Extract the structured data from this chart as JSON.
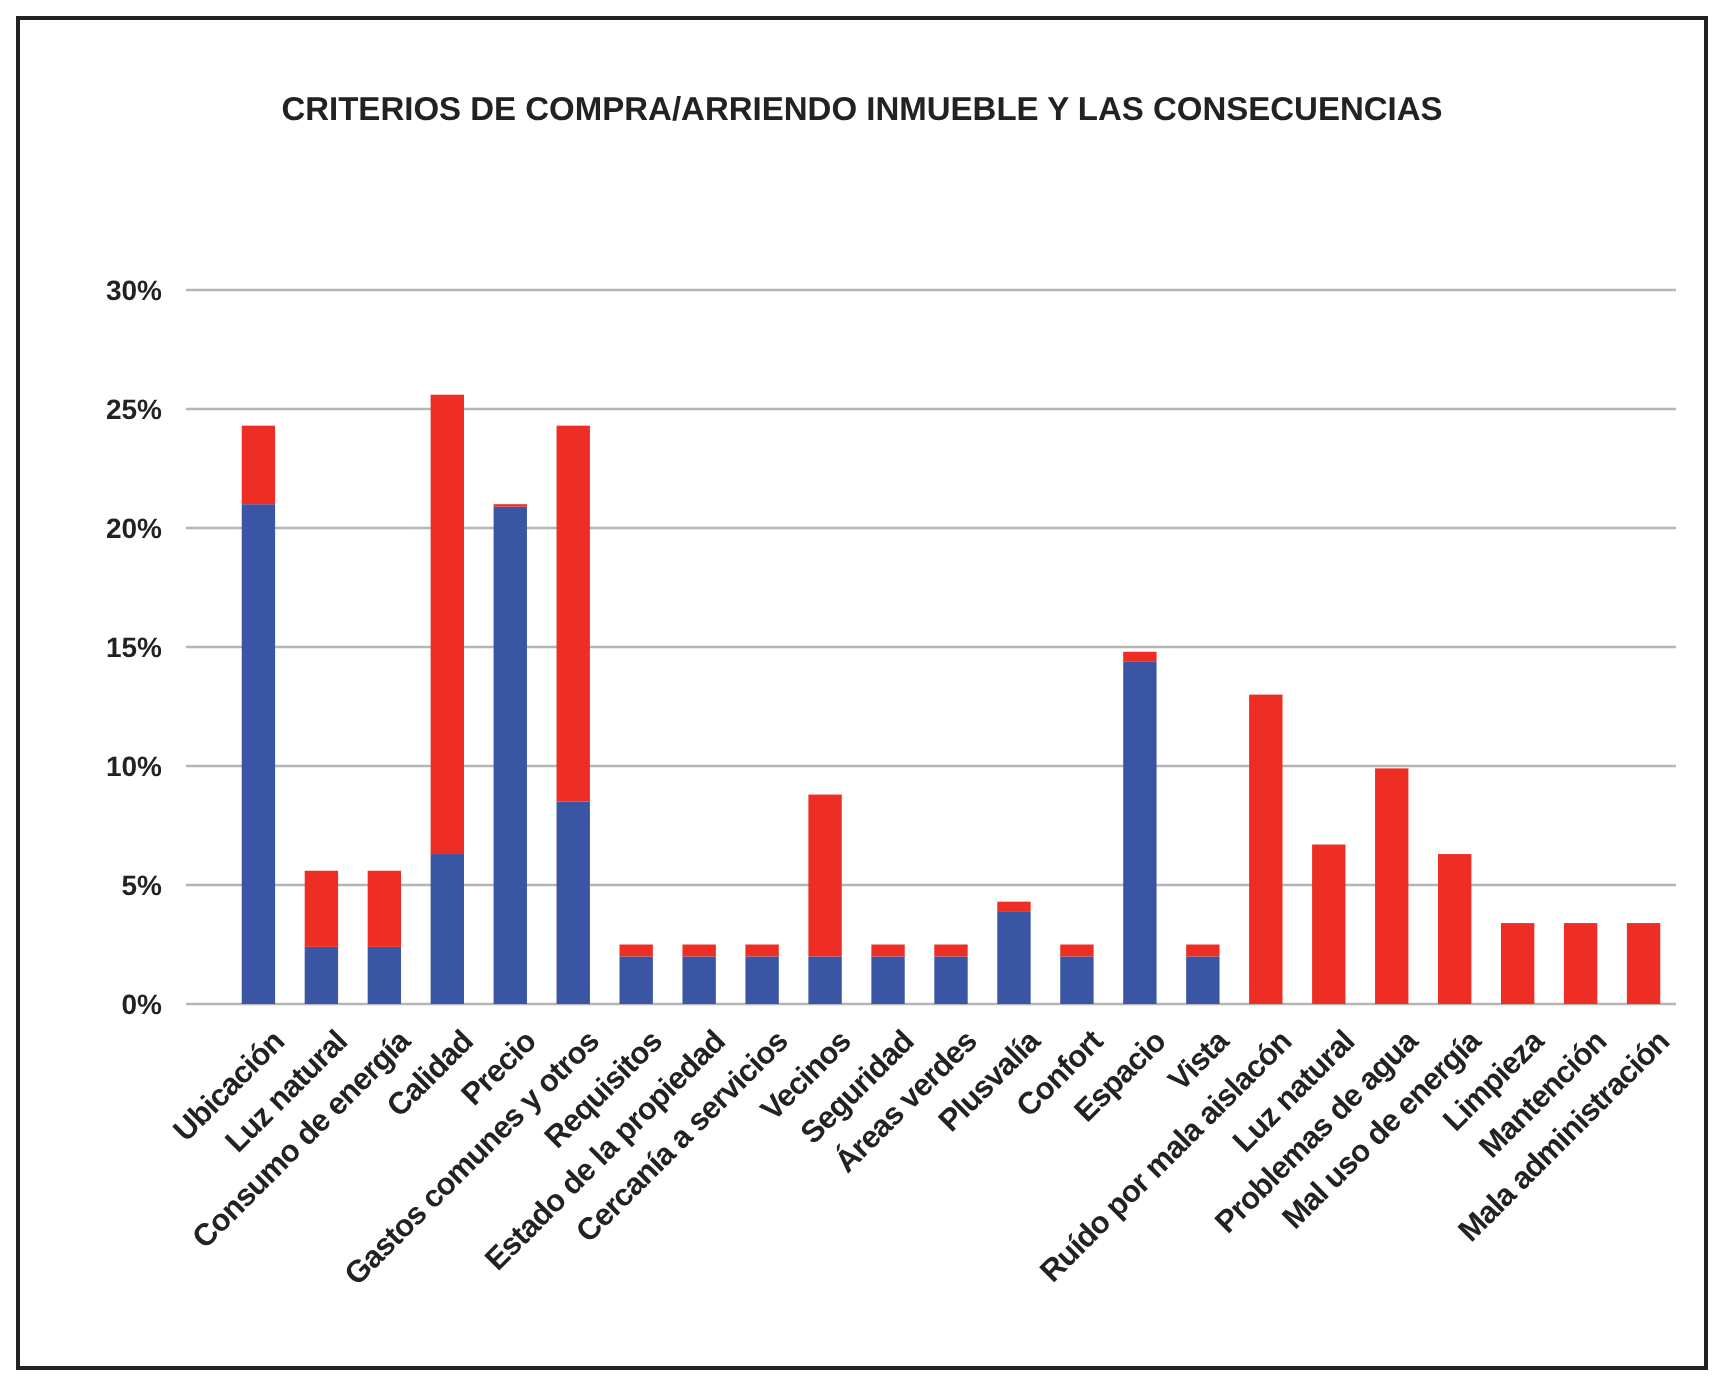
{
  "chart_data": {
    "type": "bar",
    "title": "CRITERIOS DE COMPRA/ARRIENDO INMUEBLE Y LAS CONSECUENCIAS",
    "stacked": true,
    "grid": "y",
    "categories": [
      "Ubicación",
      "Luz natural",
      "Consumo de energía",
      "Calidad",
      "Precio",
      "Gastos comunes y otros",
      "Requisitos",
      "Estado de la propiedad",
      "Cercanía a servicios",
      "Vecinos",
      "Seguridad",
      "Áreas verdes",
      "Plusvalía",
      "Confort",
      "Espacio",
      "Vista",
      "Ruído por mala aislacón",
      "Luz natural",
      "Problemas de agua",
      "Mal uso de energía",
      "Limpieza",
      "Mantención",
      "Mala administración"
    ],
    "series": [
      {
        "color": "#3a55a4",
        "values": [
          21.0,
          2.4,
          2.4,
          6.3,
          20.9,
          8.5,
          2.0,
          2.0,
          2.0,
          2.0,
          2.0,
          2.0,
          3.9,
          2.0,
          14.4,
          2.0,
          0,
          0,
          0,
          0,
          0,
          0,
          0
        ]
      },
      {
        "color": "#ee2e24",
        "values": [
          3.3,
          3.2,
          3.2,
          19.3,
          0.1,
          15.8,
          0.5,
          0.5,
          0.5,
          6.8,
          0.5,
          0.5,
          0.4,
          0.5,
          0.4,
          0.5,
          13.0,
          6.7,
          9.9,
          6.3,
          3.4,
          3.4,
          3.4
        ]
      }
    ],
    "ylim": [
      0,
      30
    ],
    "yticks": [
      {
        "value": 0,
        "label": "0%"
      },
      {
        "value": 5,
        "label": "5%"
      },
      {
        "value": 10,
        "label": "10%"
      },
      {
        "value": 15,
        "label": "15%"
      },
      {
        "value": 20,
        "label": "20%"
      },
      {
        "value": 25,
        "label": "25%"
      },
      {
        "value": 30,
        "label": "30%"
      }
    ]
  }
}
